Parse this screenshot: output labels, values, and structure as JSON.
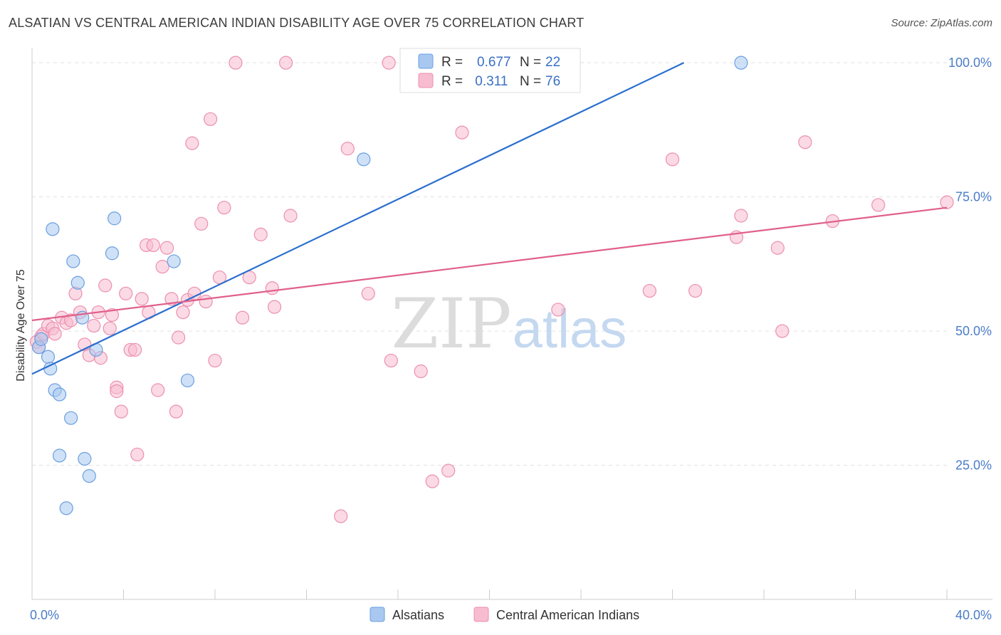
{
  "title": "ALSATIAN VS CENTRAL AMERICAN INDIAN DISABILITY AGE OVER 75 CORRELATION CHART",
  "source": "Source: ZipAtlas.com",
  "watermark": {
    "zip": "ZIP",
    "atlas": "atlas"
  },
  "colors": {
    "blue_fill": "#a8c8f0",
    "blue_stroke": "#6a9fe0",
    "blue_line": "#2b6fcf",
    "pink_fill": "#f8bcd0",
    "pink_stroke": "#ec8fae",
    "pink_line": "#e0608a",
    "tick_text": "#4a7cc8",
    "grid": "#e0e0e0"
  },
  "legend": {
    "rows": [
      {
        "r_label": "R = ",
        "r_value": "0.677",
        "n_label": "N = ",
        "n_value": "22"
      },
      {
        "r_label": "R = ",
        "r_value": " 0.311",
        "n_label": "N = ",
        "n_value": "76"
      }
    ]
  },
  "chart_data": {
    "type": "scatter",
    "title": "ALSATIAN VS CENTRAL AMERICAN INDIAN DISABILITY AGE OVER 75 CORRELATION CHART",
    "xlabel": "",
    "ylabel": "Disability Age Over 75",
    "xlim": [
      0,
      40
    ],
    "ylim": [
      0,
      104
    ],
    "x_ticks": [
      {
        "value": 0,
        "label": "0.0%"
      },
      {
        "value": 40,
        "label": "40.0%"
      }
    ],
    "y_ticks": [
      {
        "value": 25,
        "label": "25.0%"
      },
      {
        "value": 50,
        "label": "50.0%"
      },
      {
        "value": 75,
        "label": "75.0%"
      },
      {
        "value": 100,
        "label": "100.0%"
      }
    ],
    "grid": true,
    "legend_position": "top-center",
    "series": [
      {
        "name": "Alsatians",
        "color": "#a8c8f0",
        "r": 0.677,
        "n": 22,
        "trend": {
          "x": [
            0,
            28.5
          ],
          "y": [
            42.0,
            100.0
          ]
        },
        "points": [
          [
            0.3,
            47.0
          ],
          [
            0.4,
            48.5
          ],
          [
            0.7,
            45.2
          ],
          [
            0.8,
            43.0
          ],
          [
            0.9,
            69.0
          ],
          [
            1.0,
            39.0
          ],
          [
            1.2,
            38.2
          ],
          [
            1.2,
            26.8
          ],
          [
            1.5,
            17.0
          ],
          [
            1.7,
            33.8
          ],
          [
            1.8,
            63.0
          ],
          [
            2.0,
            59.0
          ],
          [
            2.2,
            52.5
          ],
          [
            2.3,
            26.2
          ],
          [
            2.5,
            23.0
          ],
          [
            2.8,
            46.5
          ],
          [
            3.5,
            64.5
          ],
          [
            3.6,
            71.0
          ],
          [
            6.2,
            63.0
          ],
          [
            6.8,
            40.8
          ],
          [
            14.5,
            82.0
          ],
          [
            31.0,
            100.0
          ]
        ]
      },
      {
        "name": "Central American Indians",
        "color": "#f8bcd0",
        "r": 0.311,
        "n": 76,
        "trend": {
          "x": [
            0,
            40
          ],
          "y": [
            52.0,
            73.0
          ]
        },
        "points": [
          [
            0.2,
            48.0
          ],
          [
            0.3,
            47.0
          ],
          [
            0.4,
            49.0
          ],
          [
            0.5,
            49.5
          ],
          [
            0.7,
            51.0
          ],
          [
            0.9,
            50.5
          ],
          [
            1.0,
            49.5
          ],
          [
            1.3,
            52.5
          ],
          [
            1.5,
            51.5
          ],
          [
            1.7,
            52.0
          ],
          [
            1.9,
            57.0
          ],
          [
            2.1,
            53.5
          ],
          [
            2.3,
            47.5
          ],
          [
            2.5,
            45.5
          ],
          [
            2.7,
            51.0
          ],
          [
            2.9,
            53.5
          ],
          [
            3.0,
            45.0
          ],
          [
            3.2,
            58.5
          ],
          [
            3.4,
            50.5
          ],
          [
            3.5,
            53.0
          ],
          [
            3.7,
            39.5
          ],
          [
            3.7,
            38.8
          ],
          [
            3.9,
            35.0
          ],
          [
            4.1,
            57.0
          ],
          [
            4.3,
            46.5
          ],
          [
            4.5,
            46.5
          ],
          [
            4.6,
            27.0
          ],
          [
            4.8,
            56.0
          ],
          [
            5.0,
            66.0
          ],
          [
            5.1,
            53.5
          ],
          [
            5.3,
            66.0
          ],
          [
            5.5,
            39.0
          ],
          [
            5.7,
            62.0
          ],
          [
            5.9,
            65.5
          ],
          [
            6.1,
            56.0
          ],
          [
            6.3,
            35.0
          ],
          [
            6.4,
            48.8
          ],
          [
            6.6,
            53.5
          ],
          [
            6.8,
            55.8
          ],
          [
            7.0,
            85.0
          ],
          [
            7.1,
            57.0
          ],
          [
            7.4,
            70.0
          ],
          [
            7.6,
            55.5
          ],
          [
            7.8,
            89.5
          ],
          [
            8.0,
            44.5
          ],
          [
            8.2,
            60.0
          ],
          [
            8.4,
            73.0
          ],
          [
            8.9,
            100.0
          ],
          [
            9.2,
            52.5
          ],
          [
            9.5,
            60.0
          ],
          [
            10.0,
            68.0
          ],
          [
            10.5,
            58.0
          ],
          [
            10.6,
            54.5
          ],
          [
            11.1,
            100.0
          ],
          [
            11.3,
            71.5
          ],
          [
            13.5,
            15.5
          ],
          [
            13.8,
            84.0
          ],
          [
            14.7,
            57.0
          ],
          [
            15.6,
            100.0
          ],
          [
            15.7,
            44.5
          ],
          [
            17.0,
            42.5
          ],
          [
            17.5,
            22.0
          ],
          [
            18.2,
            24.0
          ],
          [
            18.8,
            87.0
          ],
          [
            23.0,
            54.0
          ],
          [
            27.0,
            57.5
          ],
          [
            28.0,
            82.0
          ],
          [
            29.0,
            57.5
          ],
          [
            30.8,
            67.5
          ],
          [
            31.0,
            71.5
          ],
          [
            32.6,
            65.5
          ],
          [
            32.8,
            50.0
          ],
          [
            33.8,
            85.2
          ],
          [
            35.0,
            70.5
          ],
          [
            37.0,
            73.5
          ],
          [
            40.0,
            74.0
          ]
        ]
      }
    ]
  }
}
